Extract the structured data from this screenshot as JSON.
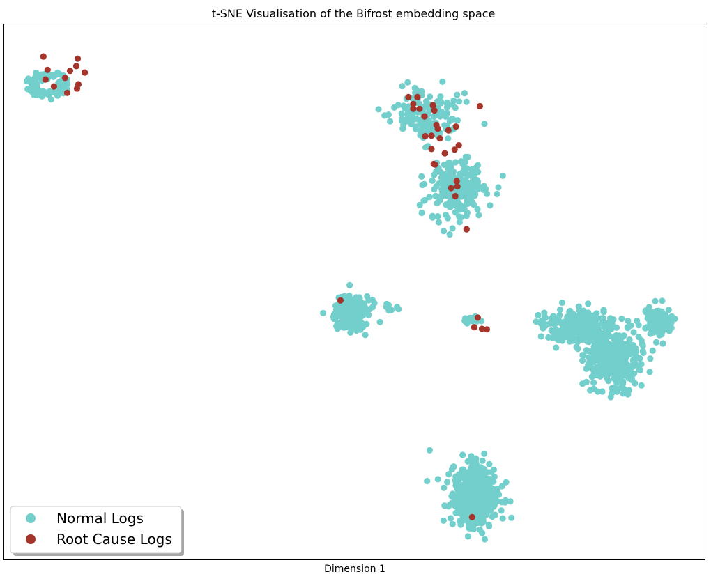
{
  "chart_data": {
    "type": "scatter",
    "title": "t-SNE Visualisation of the Bifrost embedding space",
    "xlabel": "Dimension 1",
    "ylabel": "",
    "xlim": [
      0,
      100
    ],
    "ylim": [
      0,
      100
    ],
    "grid": false,
    "legend_position": "bottom-left",
    "series": [
      {
        "name": "Normal Logs",
        "color": "#72cfcb",
        "clusters": [
          {
            "center": [
              6.3,
              11.3
            ],
            "spread": [
              3.0,
              2.4
            ],
            "count": 90,
            "shape": "ring"
          },
          {
            "center": [
              60.5,
              16.8
            ],
            "spread": [
              5.0,
              4.6
            ],
            "count": 150
          },
          {
            "center": [
              65.0,
              30.8
            ],
            "spread": [
              4.2,
              5.6
            ],
            "count": 240
          },
          {
            "center": [
              49.6,
              54.0
            ],
            "spread": [
              2.8,
              3.2
            ],
            "count": 180
          },
          {
            "center": [
              55.3,
              53.0
            ],
            "spread": [
              0.9,
              0.6
            ],
            "count": 8
          },
          {
            "center": [
              66.7,
              55.3
            ],
            "spread": [
              1.0,
              1.1
            ],
            "count": 20
          },
          {
            "center": [
              82.3,
              56.5
            ],
            "spread": [
              5.5,
              3.2
            ],
            "count": 250
          },
          {
            "center": [
              87.0,
              62.5
            ],
            "spread": [
              4.0,
              5.5
            ],
            "count": 330
          },
          {
            "center": [
              93.4,
              55.5
            ],
            "spread": [
              1.9,
              2.5
            ],
            "count": 130
          },
          {
            "center": [
              67.2,
              88.0
            ],
            "spread": [
              3.3,
              6.0
            ],
            "count": 520
          }
        ]
      },
      {
        "name": "Root Cause Logs",
        "color": "#a5342b",
        "points": [
          [
            5.6,
            6.0
          ],
          [
            5.9,
            10.3
          ],
          [
            6.2,
            8.5
          ],
          [
            7.1,
            11.6
          ],
          [
            8.7,
            10.0
          ],
          [
            9.0,
            12.8
          ],
          [
            9.4,
            8.7
          ],
          [
            10.5,
            6.4
          ],
          [
            10.6,
            11.2
          ],
          [
            10.3,
            7.8
          ],
          [
            11.5,
            9.0
          ],
          [
            10.4,
            12.0
          ],
          [
            57.7,
            13.6
          ],
          [
            58.4,
            14.9
          ],
          [
            58.4,
            15.8
          ],
          [
            59.0,
            13.6
          ],
          [
            59.3,
            15.8
          ],
          [
            60.0,
            17.2
          ],
          [
            60.1,
            20.9
          ],
          [
            61.0,
            20.8
          ],
          [
            61.2,
            15.1
          ],
          [
            61.4,
            16.1
          ],
          [
            61.7,
            18.8
          ],
          [
            61.9,
            19.5
          ],
          [
            62.2,
            21.3
          ],
          [
            61.0,
            23.3
          ],
          [
            61.3,
            26.1
          ],
          [
            61.5,
            26.2
          ],
          [
            62.9,
            24.1
          ],
          [
            63.4,
            19.8
          ],
          [
            64.3,
            23.4
          ],
          [
            64.5,
            19.1
          ],
          [
            64.9,
            22.6
          ],
          [
            63.8,
            30.6
          ],
          [
            64.4,
            32.1
          ],
          [
            64.7,
            30.3
          ],
          [
            64.6,
            29.3
          ],
          [
            66.0,
            38.3
          ],
          [
            67.9,
            15.3
          ],
          [
            67.1,
            56.6
          ],
          [
            67.6,
            54.8
          ],
          [
            68.2,
            56.9
          ],
          [
            68.9,
            57.0
          ],
          [
            48.0,
            51.6
          ],
          [
            66.8,
            92.1
          ]
        ]
      }
    ]
  }
}
